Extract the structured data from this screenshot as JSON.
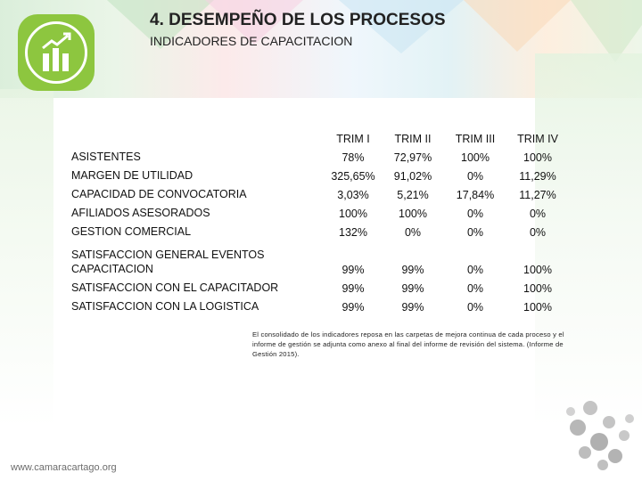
{
  "header": {
    "title": "4. DESEMPEÑO DE LOS PROCESOS",
    "subtitle": "INDICADORES DE CAPACITACION"
  },
  "table": {
    "columns": [
      "TRIM I",
      "TRIM II",
      "TRIM III",
      "TRIM IV"
    ],
    "rows": [
      {
        "label": "ASISTENTES",
        "values": [
          "78%",
          "72,97%",
          "100%",
          "100%"
        ]
      },
      {
        "label": "MARGEN DE UTILIDAD",
        "values": [
          "325,65%",
          "91,02%",
          "0%",
          "11,29%"
        ]
      },
      {
        "label": "CAPACIDAD DE CONVOCATORIA",
        "values": [
          "3,03%",
          "5,21%",
          "17,84%",
          "11,27%"
        ]
      },
      {
        "label": "AFILIADOS ASESORADOS",
        "values": [
          "100%",
          "100%",
          "0%",
          "0%"
        ]
      },
      {
        "label": "GESTION COMERCIAL",
        "values": [
          "132%",
          "0%",
          "0%",
          "0%"
        ]
      },
      {
        "label": "SATISFACCION GENERAL EVENTOS CAPACITACION",
        "values": [
          "99%",
          "99%",
          "0%",
          "100%"
        ]
      },
      {
        "label": "SATISFACCION CON EL CAPACITADOR",
        "values": [
          "99%",
          "99%",
          "0%",
          "100%"
        ]
      },
      {
        "label": "SATISFACCION CON LA LOGISTICA",
        "values": [
          "99%",
          "99%",
          "0%",
          "100%"
        ]
      }
    ]
  },
  "note": "El consolidado de los indicadores reposa en las carpetas de mejora continua de cada proceso y el informe de gestión se adjunta como anexo al final del informe de revisión del sistema. (Informe de Gestión 2015).",
  "footer": {
    "website": "www.camaracartago.org"
  },
  "colors": {
    "brand_green": "#8dc63f",
    "dots": "#b7b7b7"
  },
  "icons": {
    "logo": "bar-chart-growth-icon"
  }
}
